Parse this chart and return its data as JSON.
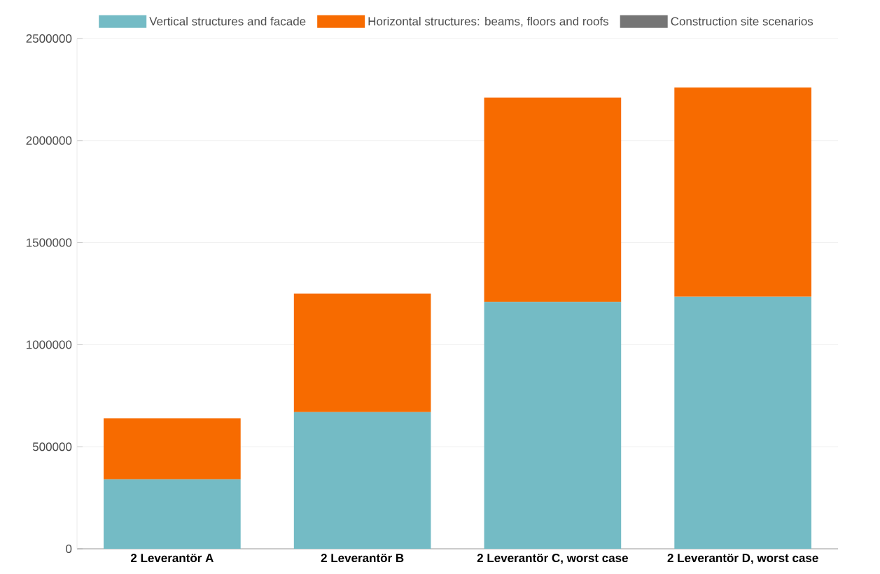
{
  "chart_data": {
    "type": "bar",
    "stacked": true,
    "categories": [
      "2 Leverantör A",
      "2 Leverantör B",
      "2 Leverantör C, worst case",
      "2 Leverantör D, worst case"
    ],
    "series": [
      {
        "name": "Vertical structures and facade",
        "color": "#74bbc5",
        "values": [
          340000,
          670000,
          1210000,
          1235000
        ]
      },
      {
        "name": "Horizontal structures: beams, floors and roofs",
        "color": "#f76b00",
        "values": [
          300000,
          580000,
          1000000,
          1025000
        ]
      },
      {
        "name": "Construction site scenarios",
        "color": "#757575",
        "values": [
          0,
          0,
          0,
          0
        ]
      }
    ],
    "ylim": [
      0,
      2500000
    ],
    "yticks": [
      0,
      500000,
      1000000,
      1500000,
      2000000,
      2500000
    ],
    "grid": "y",
    "legend": "top"
  }
}
